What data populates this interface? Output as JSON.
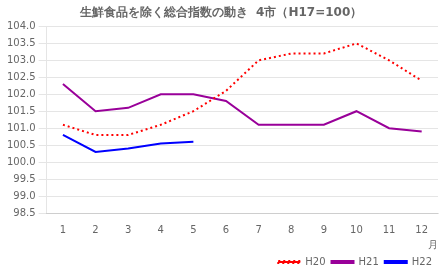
{
  "chart_data": {
    "type": "line",
    "title": "生鮮食品を除く総合指数の動き  4市（H17=100）",
    "xlabel": "月",
    "x": [
      1,
      2,
      3,
      4,
      5,
      6,
      7,
      8,
      9,
      10,
      11,
      12
    ],
    "series": [
      {
        "name": "H20",
        "color": "#ff0000",
        "line_style": "dotted",
        "values": [
          101.1,
          100.8,
          100.8,
          101.1,
          101.5,
          102.1,
          103.0,
          103.2,
          103.2,
          103.5,
          103.0,
          102.4
        ]
      },
      {
        "name": "H21",
        "color": "#990099",
        "line_style": "solid",
        "values": [
          102.3,
          101.5,
          101.6,
          102.0,
          102.0,
          101.8,
          101.1,
          101.1,
          101.1,
          101.5,
          101.0,
          100.9
        ]
      },
      {
        "name": "H22",
        "color": "#0000ff",
        "line_style": "solid",
        "values": [
          100.8,
          100.3,
          100.4,
          100.55,
          100.6,
          null,
          null,
          null,
          null,
          null,
          null,
          null
        ]
      }
    ],
    "xlim": [
      0.5,
      12.5
    ],
    "xticks": [
      1,
      2,
      3,
      4,
      5,
      6,
      7,
      8,
      9,
      10,
      11,
      12
    ],
    "ylim": [
      98.5,
      104.0
    ],
    "yticks": [
      98.5,
      {
        "value": 99,
        "label": "99.0"
      },
      99.5,
      {
        "value": 100,
        "label": "100.0"
      },
      100.5,
      {
        "value": 101,
        "label": "101.0"
      },
      101.5,
      {
        "value": 102,
        "label": "102.0"
      },
      102.5,
      {
        "value": 103,
        "label": "103.0"
      },
      103.5,
      {
        "value": 104,
        "label": "104.0"
      }
    ],
    "grid": "y",
    "legend": "lower right"
  }
}
